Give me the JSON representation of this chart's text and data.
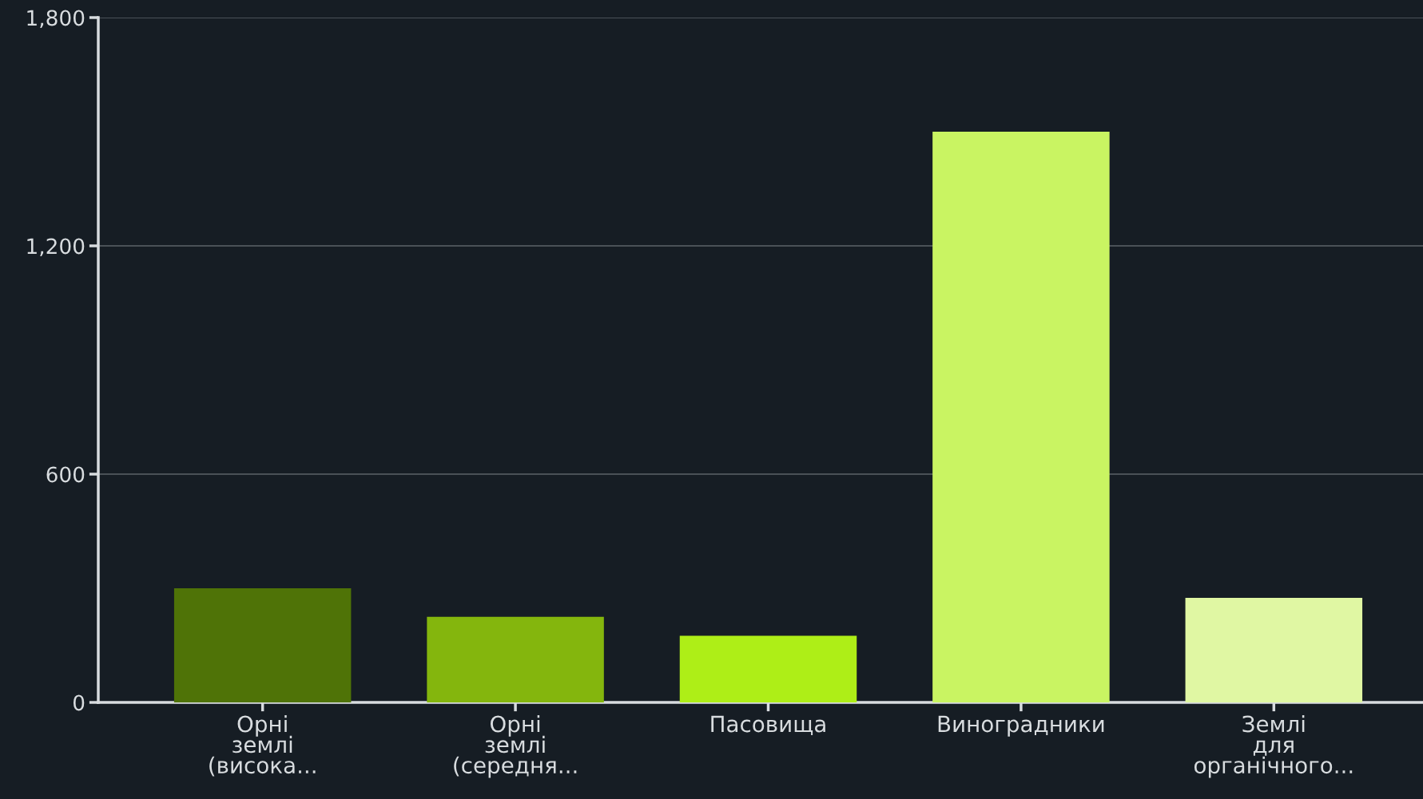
{
  "chart_data": {
    "type": "bar",
    "categories": [
      "Орні\nземлі\n(висока...",
      "Орні\nземлі\n(середня...",
      "Пасовища",
      "Виноградники",
      "Землі\nдля\nорганічного..."
    ],
    "values": [
      300,
      225,
      175,
      1500,
      275
    ],
    "colors": [
      "#4f7307",
      "#84b60d",
      "#aeee17",
      "#c9f462",
      "#e0f7a3"
    ],
    "ylim": [
      0,
      1800
    ],
    "yticks": [
      0,
      {
        "value": 600,
        "label": "600"
      },
      {
        "value": 1200,
        "label": "1,200"
      },
      {
        "value": 1800,
        "label": "1,800"
      }
    ],
    "grid": "y",
    "legend": false
  }
}
